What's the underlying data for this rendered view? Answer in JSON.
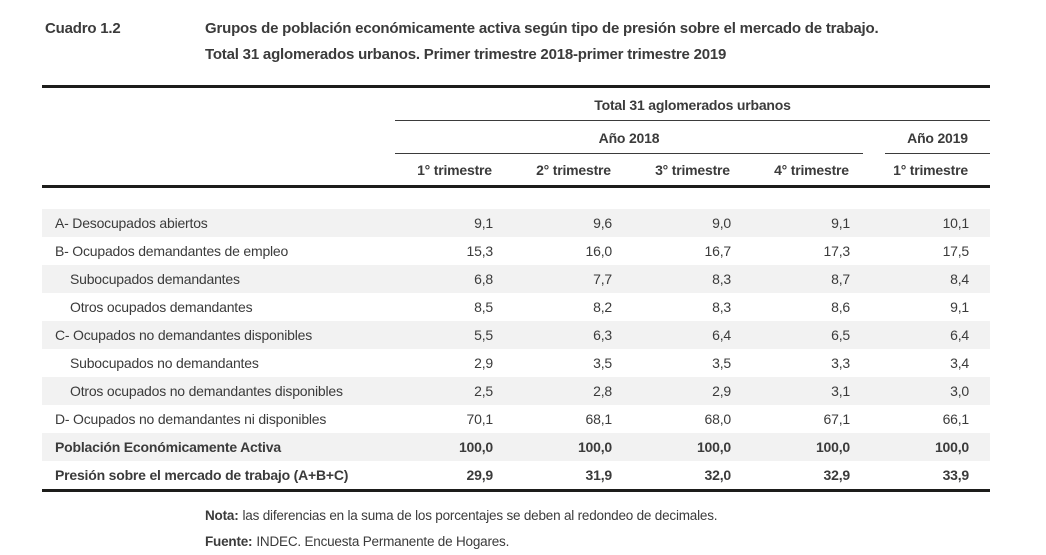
{
  "title": {
    "label": "Cuadro 1.2",
    "line1": "Grupos de población económicamente activa según tipo de presión sobre el mercado de trabajo.",
    "line2": "Total 31 aglomerados urbanos. Primer trimestre 2018-primer trimestre 2019"
  },
  "table": {
    "group_header": "Total 31 aglomerados urbanos",
    "year_2018": "Año 2018",
    "year_2019": "Año 2019",
    "quarter_headers": [
      "1° trimestre",
      "2° trimestre",
      "3° trimestre",
      "4° trimestre",
      "1° trimestre"
    ],
    "rows": [
      {
        "label": "A- Desocupados abiertos",
        "indent": false,
        "bold": false,
        "shaded": true,
        "values": [
          "9,1",
          "9,6",
          "9,0",
          "9,1",
          "10,1"
        ]
      },
      {
        "label": "B- Ocupados demandantes de empleo",
        "indent": false,
        "bold": false,
        "shaded": false,
        "values": [
          "15,3",
          "16,0",
          "16,7",
          "17,3",
          "17,5"
        ]
      },
      {
        "label": "Subocupados demandantes",
        "indent": true,
        "bold": false,
        "shaded": true,
        "values": [
          "6,8",
          "7,7",
          "8,3",
          "8,7",
          "8,4"
        ]
      },
      {
        "label": "Otros ocupados demandantes",
        "indent": true,
        "bold": false,
        "shaded": false,
        "values": [
          "8,5",
          "8,2",
          "8,3",
          "8,6",
          "9,1"
        ]
      },
      {
        "label": "C- Ocupados no demandantes disponibles",
        "indent": false,
        "bold": false,
        "shaded": true,
        "values": [
          "5,5",
          "6,3",
          "6,4",
          "6,5",
          "6,4"
        ]
      },
      {
        "label": "Subocupados no demandantes",
        "indent": true,
        "bold": false,
        "shaded": false,
        "values": [
          "2,9",
          "3,5",
          "3,5",
          "3,3",
          "3,4"
        ]
      },
      {
        "label": "Otros ocupados no demandantes disponibles",
        "indent": true,
        "bold": false,
        "shaded": true,
        "values": [
          "2,5",
          "2,8",
          "2,9",
          "3,1",
          "3,0"
        ]
      },
      {
        "label": "D- Ocupados no demandantes ni disponibles",
        "indent": false,
        "bold": false,
        "shaded": false,
        "values": [
          "70,1",
          "68,1",
          "68,0",
          "67,1",
          "66,1"
        ]
      },
      {
        "label": "Población Económicamente Activa",
        "indent": false,
        "bold": true,
        "shaded": true,
        "values": [
          "100,0",
          "100,0",
          "100,0",
          "100,0",
          "100,0"
        ]
      },
      {
        "label": "Presión sobre el mercado de trabajo (A+B+C)",
        "indent": false,
        "bold": true,
        "shaded": false,
        "values": [
          "29,9",
          "31,9",
          "32,0",
          "32,9",
          "33,9"
        ]
      }
    ]
  },
  "notes": {
    "nota_label": "Nota:",
    "nota_text": "las diferencias en la suma de los porcentajes se deben al redondeo de decimales.",
    "fuente_label": "Fuente:",
    "fuente_text": "INDEC. Encuesta Permanente de Hogares."
  },
  "colors": {
    "text": "#3b3b3b",
    "row_shading": "#f2f2f2",
    "rule_thick": "#1d1d1b",
    "rule_thin": "#3b3b3b",
    "background": "#ffffff"
  }
}
